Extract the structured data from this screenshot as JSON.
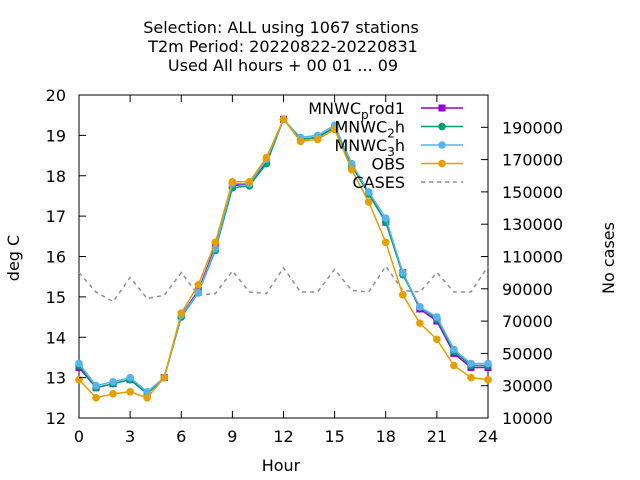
{
  "chart_data": {
    "type": "line",
    "title": [
      "Selection: ALL using  1067 stations",
      "T2m    Period: 20220822-20220831",
      "Used  All hours  + 00 01 ... 09"
    ],
    "xlabel": "Hour",
    "ylabel": "deg C",
    "y2label": "No cases",
    "xlim": [
      0,
      24
    ],
    "ylim": [
      12,
      20
    ],
    "y2lim": [
      10000,
      210000
    ],
    "xticks": [
      0,
      3,
      6,
      9,
      12,
      15,
      18,
      21,
      24
    ],
    "yticks": [
      12,
      13,
      14,
      15,
      16,
      17,
      18,
      19,
      20
    ],
    "y2ticks": [
      10000,
      30000,
      50000,
      70000,
      90000,
      110000,
      130000,
      150000,
      170000,
      190000
    ],
    "legend_position": "top-right",
    "grid": false,
    "x": [
      0,
      1,
      2,
      3,
      4,
      5,
      6,
      7,
      8,
      9,
      10,
      11,
      12,
      13,
      14,
      15,
      16,
      17,
      18,
      19,
      20,
      21,
      22,
      23,
      24
    ],
    "series": [
      {
        "name": "MNWC_prod1",
        "label_main": "MNWC",
        "label_sub": "p",
        "label_rest": "rod1",
        "color": "#9400d3",
        "marker": "square",
        "axis": "y1",
        "values": [
          13.25,
          12.75,
          12.85,
          12.95,
          12.6,
          13.0,
          14.55,
          15.15,
          16.25,
          17.75,
          17.8,
          18.35,
          19.4,
          18.9,
          18.95,
          19.2,
          18.25,
          17.55,
          16.85,
          15.6,
          14.7,
          14.4,
          13.6,
          13.25,
          13.25
        ]
      },
      {
        "name": "MNWC_2h",
        "label_main": "MNWC",
        "label_sub": "2",
        "label_rest": "h",
        "color": "#009e73",
        "marker": "circle",
        "axis": "y1",
        "values": [
          13.3,
          12.75,
          12.85,
          12.95,
          12.6,
          13.0,
          14.5,
          15.1,
          16.15,
          17.7,
          17.75,
          18.3,
          19.4,
          18.9,
          18.95,
          19.2,
          18.25,
          17.55,
          16.85,
          15.55,
          14.75,
          14.45,
          13.65,
          13.3,
          13.3
        ]
      },
      {
        "name": "MNWC_3h",
        "label_main": "MNWC",
        "label_sub": "3",
        "label_rest": "h",
        "color": "#56b4e9",
        "marker": "circle",
        "axis": "y1",
        "values": [
          13.35,
          12.8,
          12.9,
          13.0,
          12.65,
          13.0,
          14.55,
          15.1,
          16.2,
          17.8,
          17.8,
          18.4,
          19.4,
          18.95,
          19.0,
          19.25,
          18.3,
          17.6,
          16.95,
          15.6,
          14.75,
          14.5,
          13.7,
          13.35,
          13.35
        ]
      },
      {
        "name": "OBS",
        "label_main": "OBS",
        "label_sub": "",
        "label_rest": "",
        "color": "#e69f00",
        "marker": "circle",
        "axis": "y1",
        "values": [
          12.95,
          12.5,
          12.6,
          12.65,
          12.5,
          13.0,
          14.6,
          15.3,
          16.35,
          17.85,
          17.85,
          18.45,
          19.4,
          18.85,
          18.9,
          19.15,
          18.15,
          17.35,
          16.35,
          15.05,
          14.35,
          13.95,
          13.3,
          13.0,
          12.95
        ]
      },
      {
        "name": "CASES",
        "label_main": "CASES",
        "label_sub": "",
        "label_rest": "",
        "color": "#8f8f8f",
        "marker": "none",
        "dash": true,
        "axis": "y2",
        "values": [
          100000,
          88000,
          82000,
          97000,
          84000,
          86000,
          100000,
          86000,
          87000,
          101000,
          88000,
          87000,
          103000,
          88000,
          88000,
          102000,
          89000,
          88000,
          104000,
          89000,
          88000,
          100000,
          88000,
          88000,
          104000
        ]
      }
    ]
  }
}
